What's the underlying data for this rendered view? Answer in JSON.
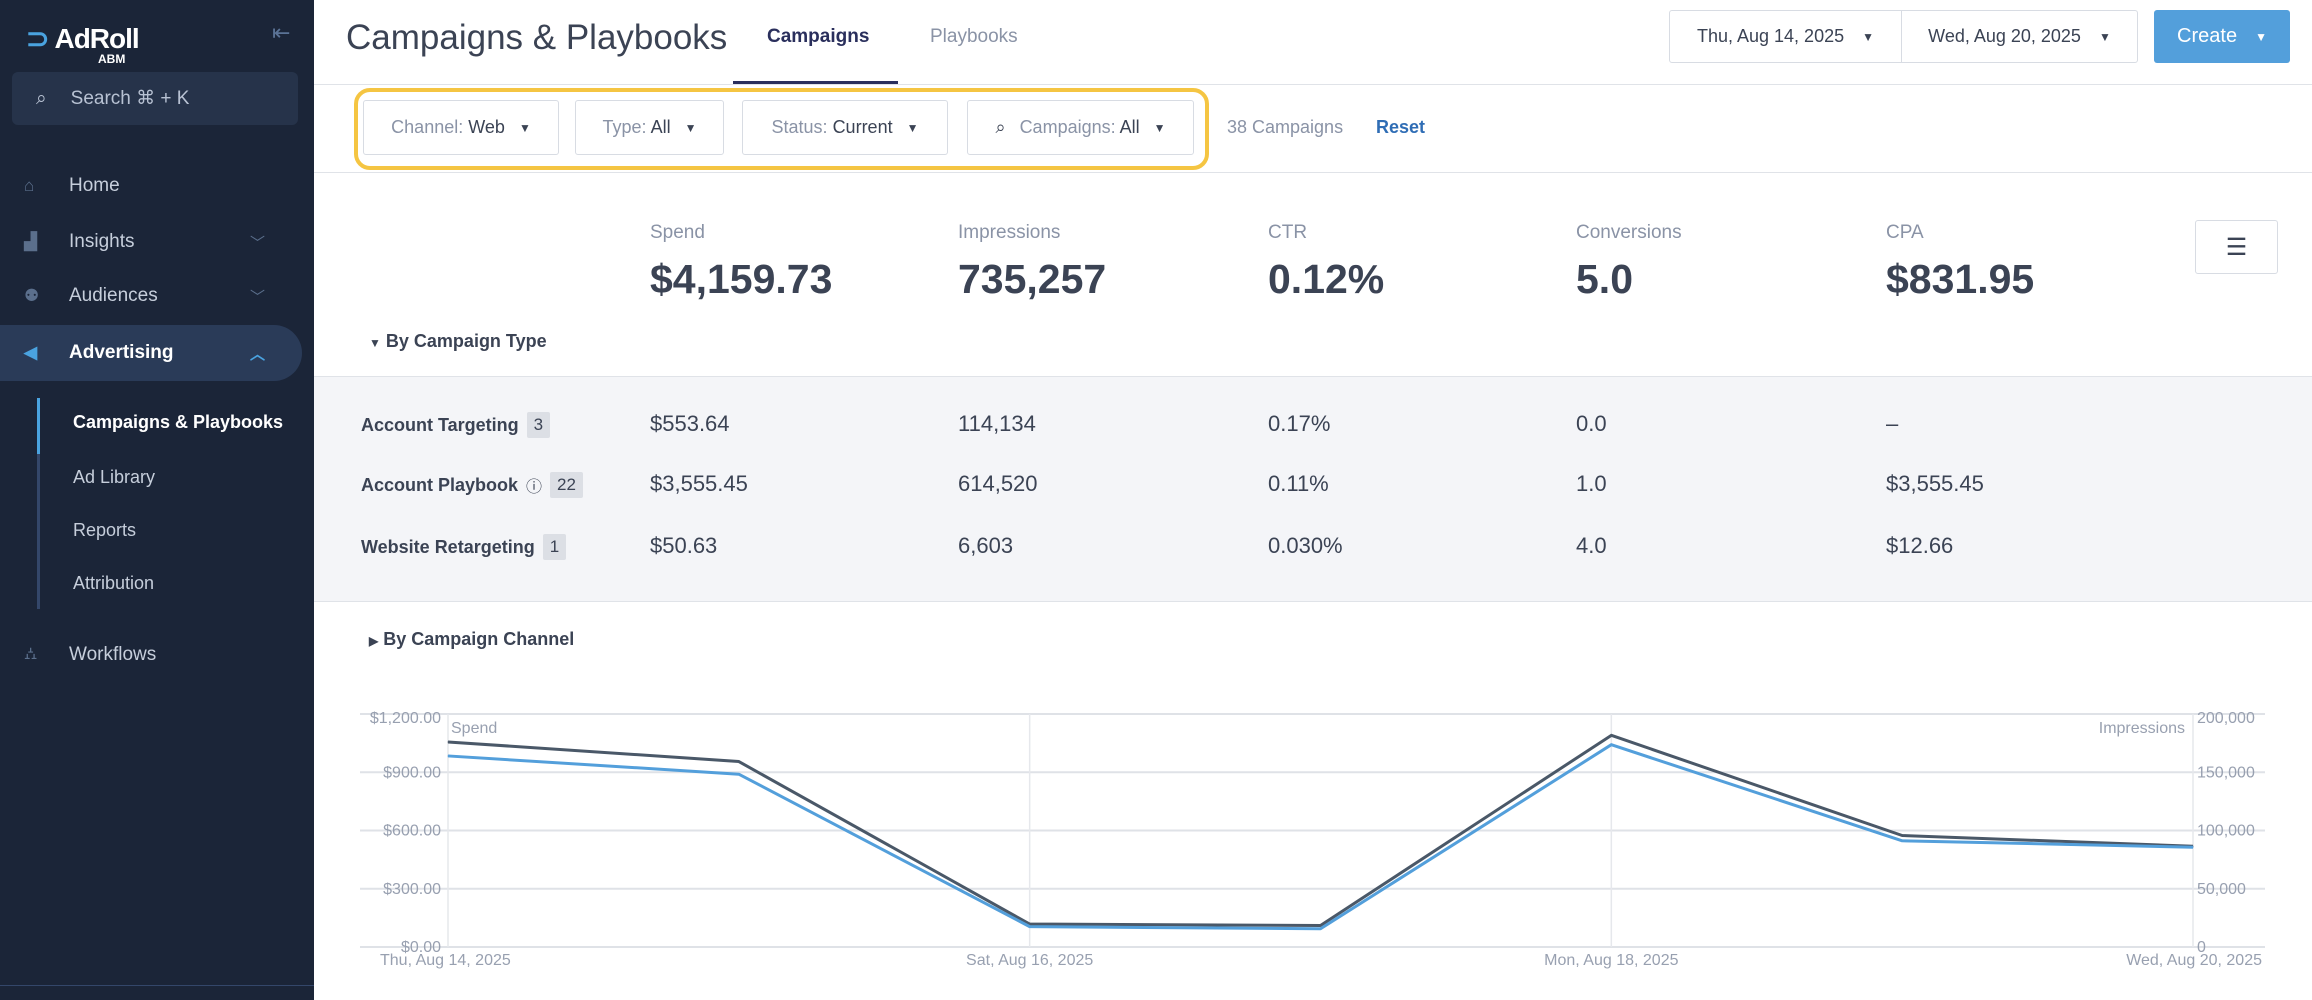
{
  "sidebar": {
    "logo": "AdRoll",
    "logo_sub": "ABM",
    "search_placeholder": "Search ⌘ + K",
    "items": [
      {
        "label": "Home",
        "icon": "home-icon"
      },
      {
        "label": "Insights",
        "icon": "chart-icon"
      },
      {
        "label": "Audiences",
        "icon": "people-icon"
      },
      {
        "label": "Advertising",
        "icon": "megaphone-icon"
      },
      {
        "label": "Workflows",
        "icon": "workflow-icon"
      }
    ],
    "subitems": [
      {
        "label": "Campaigns & Playbooks"
      },
      {
        "label": "Ad Library"
      },
      {
        "label": "Reports"
      },
      {
        "label": "Attribution"
      }
    ]
  },
  "header": {
    "title": "Campaigns & Playbooks",
    "tabs": [
      {
        "label": "Campaigns"
      },
      {
        "label": "Playbooks"
      }
    ],
    "start_date": "Thu, Aug 14, 2025",
    "end_date": "Wed, Aug 20, 2025",
    "create": "Create"
  },
  "filters": {
    "channel": {
      "label": "Channel:",
      "value": "Web"
    },
    "type": {
      "label": "Type:",
      "value": "All"
    },
    "status": {
      "label": "Status:",
      "value": "Current"
    },
    "campaigns": {
      "label": "Campaigns:",
      "value": "All"
    },
    "count": "38 Campaigns",
    "reset": "Reset"
  },
  "metrics": [
    {
      "label": "Spend",
      "value": "$4,159.73"
    },
    {
      "label": "Impressions",
      "value": "735,257"
    },
    {
      "label": "CTR",
      "value": "0.12%"
    },
    {
      "label": "Conversions",
      "value": "5.0"
    },
    {
      "label": "CPA",
      "value": "$831.95"
    }
  ],
  "by_type": {
    "title": "By Campaign Type",
    "rows": [
      {
        "name": "Account Targeting",
        "count": "3",
        "spend": "$553.64",
        "impressions": "114,134",
        "ctr": "0.17%",
        "conversions": "0.0",
        "cpa": "–"
      },
      {
        "name": "Account Playbook",
        "count": "22",
        "spend": "$3,555.45",
        "impressions": "614,520",
        "ctr": "0.11%",
        "conversions": "1.0",
        "cpa": "$3,555.45"
      },
      {
        "name": "Website Retargeting",
        "count": "1",
        "spend": "$50.63",
        "impressions": "6,603",
        "ctr": "0.030%",
        "conversions": "4.0",
        "cpa": "$12.66"
      }
    ]
  },
  "by_channel": {
    "title": "By Campaign Channel"
  },
  "chart_data": {
    "type": "line",
    "x": [
      "Thu, Aug 14, 2025",
      "Fri, Aug 15, 2025",
      "Sat, Aug 16, 2025",
      "Sun, Aug 17, 2025",
      "Mon, Aug 18, 2025",
      "Tue, Aug 19, 2025",
      "Wed, Aug 20, 2025"
    ],
    "x_tick_labels": [
      "Thu, Aug 14, 2025",
      "Sat, Aug 16, 2025",
      "Mon, Aug 18, 2025",
      "Wed, Aug 20, 2025"
    ],
    "ylabel_left": "Spend",
    "ylabel_right": "Impressions",
    "ylim_left": [
      0,
      1200
    ],
    "ylim_right": [
      0,
      200000
    ],
    "yticks_left": [
      "$0.00",
      "$300.00",
      "$600.00",
      "$900.00",
      "$1,200.00"
    ],
    "yticks_right": [
      "0",
      "50,000",
      "100,000",
      "150,000",
      "200,000"
    ],
    "series": [
      {
        "name": "Spend",
        "axis": "left",
        "color": "#539fdb",
        "values": [
          984,
          890,
          105,
          94,
          1042,
          547,
          514
        ]
      },
      {
        "name": "Impressions",
        "axis": "right",
        "color": "#4a5868",
        "values": [
          176000,
          159200,
          19700,
          18500,
          181700,
          95700,
          86500
        ]
      }
    ]
  }
}
